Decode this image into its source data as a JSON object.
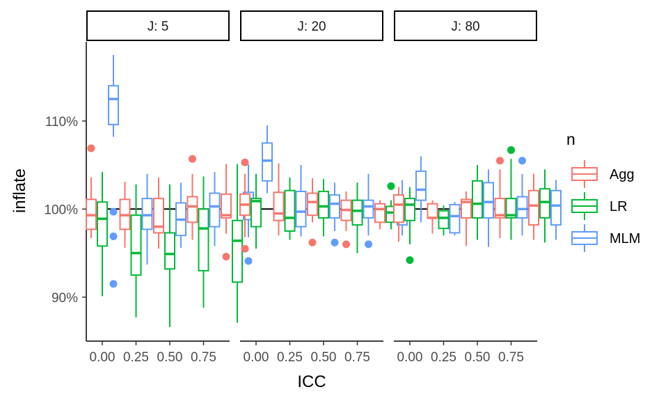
{
  "chart_data": {
    "type": "boxplot",
    "xlabel": "ICC",
    "ylabel": "inflate",
    "x_ticks": [
      "0.00",
      "0.25",
      "0.50",
      "0.75"
    ],
    "x_values": [
      0.0,
      0.25,
      0.5,
      0.75
    ],
    "y_ticks": [
      {
        "value": 0.9,
        "label": "90%"
      },
      {
        "value": 1.0,
        "label": "100%"
      },
      {
        "value": 1.1,
        "label": "110%"
      }
    ],
    "ylim": [
      0.85,
      1.19
    ],
    "reference_line": 1.0,
    "legend": {
      "title": "n",
      "position": "right",
      "items": [
        {
          "name": "Agg",
          "color": "#F8766D"
        },
        {
          "name": "LR",
          "color": "#00BA38"
        },
        {
          "name": "MLM",
          "color": "#619CFF"
        }
      ]
    },
    "facets": [
      {
        "label": "J: 5",
        "groups": [
          {
            "icc": 0.0,
            "boxes": [
              {
                "series": "Agg",
                "lo": 0.967,
                "q1": 0.977,
                "med": 0.993,
                "q3": 1.011,
                "hi": 1.036,
                "outliers": [
                  1.069
                ]
              },
              {
                "series": "LR",
                "lo": 0.901,
                "q1": 0.958,
                "med": 0.989,
                "q3": 1.008,
                "hi": 1.042,
                "outliers": []
              },
              {
                "series": "MLM",
                "lo": 1.082,
                "q1": 1.096,
                "med": 1.125,
                "q3": 1.14,
                "hi": 1.175,
                "outliers": [
                  0.997,
                  0.969,
                  0.915
                ]
              }
            ]
          },
          {
            "icc": 0.25,
            "boxes": [
              {
                "series": "Agg",
                "lo": 0.956,
                "q1": 0.977,
                "med": 0.993,
                "q3": 1.011,
                "hi": 1.031,
                "outliers": []
              },
              {
                "series": "LR",
                "lo": 0.877,
                "q1": 0.925,
                "med": 0.95,
                "q3": 0.993,
                "hi": 1.028,
                "outliers": []
              },
              {
                "series": "MLM",
                "lo": 0.937,
                "q1": 0.977,
                "med": 0.993,
                "q3": 1.012,
                "hi": 1.04,
                "outliers": []
              }
            ]
          },
          {
            "icc": 0.5,
            "boxes": [
              {
                "series": "Agg",
                "lo": 0.955,
                "q1": 0.973,
                "med": 0.98,
                "q3": 1.012,
                "hi": 1.036,
                "outliers": []
              },
              {
                "series": "LR",
                "lo": 0.866,
                "q1": 0.932,
                "med": 0.949,
                "q3": 0.973,
                "hi": 1.028,
                "outliers": []
              },
              {
                "series": "MLM",
                "lo": 0.956,
                "q1": 0.97,
                "med": 0.988,
                "q3": 1.007,
                "hi": 1.03,
                "outliers": []
              }
            ]
          },
          {
            "icc": 0.75,
            "boxes": [
              {
                "series": "Agg",
                "lo": 0.965,
                "q1": 0.985,
                "med": 1.003,
                "q3": 1.014,
                "hi": 1.04,
                "outliers": [
                  1.057
                ]
              },
              {
                "series": "LR",
                "lo": 0.888,
                "q1": 0.93,
                "med": 0.978,
                "q3": 1.0,
                "hi": 1.037,
                "outliers": []
              },
              {
                "series": "MLM",
                "lo": 0.958,
                "q1": 0.98,
                "med": 1.003,
                "q3": 1.018,
                "hi": 1.042,
                "outliers": []
              }
            ]
          },
          {
            "icc": 1.0,
            "boxes": [
              {
                "series": "Agg",
                "lo": 0.972,
                "q1": 0.99,
                "med": 0.993,
                "q3": 1.017,
                "hi": 1.051,
                "outliers": [
                  0.946
                ]
              },
              {
                "series": "LR",
                "lo": 0.871,
                "q1": 0.917,
                "med": 0.964,
                "q3": 0.987,
                "hi": 1.051,
                "outliers": []
              },
              {
                "series": "MLM",
                "lo": 0.968,
                "q1": 0.988,
                "med": 1.001,
                "q3": 1.019,
                "hi": 1.051,
                "outliers": [
                  0.941
                ]
              }
            ]
          }
        ]
      },
      {
        "label": "J: 20",
        "groups": [
          {
            "icc": 0.0,
            "boxes": [
              {
                "series": "Agg",
                "lo": 0.968,
                "q1": 0.993,
                "med": 1.005,
                "q3": 1.017,
                "hi": 1.04,
                "outliers": [
                  1.053,
                  0.955
                ]
              },
              {
                "series": "LR",
                "lo": 0.955,
                "q1": 0.98,
                "med": 1.009,
                "q3": 1.012,
                "hi": 1.04,
                "outliers": []
              },
              {
                "series": "MLM",
                "lo": 1.018,
                "q1": 1.032,
                "med": 1.055,
                "q3": 1.075,
                "hi": 1.095,
                "outliers": []
              }
            ]
          },
          {
            "icc": 0.25,
            "boxes": [
              {
                "series": "Agg",
                "lo": 0.97,
                "q1": 0.987,
                "med": 0.995,
                "q3": 1.019,
                "hi": 1.052,
                "outliers": []
              },
              {
                "series": "LR",
                "lo": 0.965,
                "q1": 0.975,
                "med": 0.99,
                "q3": 1.021,
                "hi": 1.036,
                "outliers": []
              },
              {
                "series": "MLM",
                "lo": 0.969,
                "q1": 0.98,
                "med": 0.997,
                "q3": 1.02,
                "hi": 1.05,
                "outliers": []
              }
            ]
          },
          {
            "icc": 0.5,
            "boxes": [
              {
                "series": "Agg",
                "lo": 0.985,
                "q1": 0.993,
                "med": 1.008,
                "q3": 1.018,
                "hi": 1.035,
                "outliers": [
                  0.962
                ]
              },
              {
                "series": "LR",
                "lo": 0.969,
                "q1": 0.99,
                "med": 1.003,
                "q3": 1.02,
                "hi": 1.034,
                "outliers": []
              },
              {
                "series": "MLM",
                "lo": 0.975,
                "q1": 0.99,
                "med": 1.006,
                "q3": 1.016,
                "hi": 1.03,
                "outliers": [
                  0.962
                ]
              }
            ]
          },
          {
            "icc": 0.75,
            "boxes": [
              {
                "series": "Agg",
                "lo": 0.975,
                "q1": 0.987,
                "med": 0.999,
                "q3": 1.01,
                "hi": 1.02,
                "outliers": [
                  0.96
                ]
              },
              {
                "series": "LR",
                "lo": 0.95,
                "q1": 0.982,
                "med": 0.998,
                "q3": 1.01,
                "hi": 1.03,
                "outliers": []
              },
              {
                "series": "MLM",
                "lo": 0.97,
                "q1": 0.99,
                "med": 1.003,
                "q3": 1.01,
                "hi": 1.04,
                "outliers": [
                  0.96
                ]
              }
            ]
          },
          {
            "icc": 1.0,
            "boxes": [
              {
                "series": "Agg",
                "lo": 0.977,
                "q1": 0.985,
                "med": 1.0,
                "q3": 1.006,
                "hi": 1.01,
                "outliers": []
              },
              {
                "series": "LR",
                "lo": 0.977,
                "q1": 0.985,
                "med": 0.996,
                "q3": 1.003,
                "hi": 1.01,
                "outliers": [
                  1.026
                ]
              },
              {
                "series": "MLM",
                "lo": 0.97,
                "q1": 0.982,
                "med": 0.999,
                "q3": 1.006,
                "hi": 1.033,
                "outliers": []
              }
            ]
          }
        ]
      },
      {
        "label": "J: 80",
        "groups": [
          {
            "icc": 0.0,
            "boxes": [
              {
                "series": "Agg",
                "lo": 0.963,
                "q1": 0.985,
                "med": 1.005,
                "q3": 1.016,
                "hi": 1.025,
                "outliers": []
              },
              {
                "series": "LR",
                "lo": 0.96,
                "q1": 0.987,
                "med": 1.005,
                "q3": 1.012,
                "hi": 1.025,
                "outliers": [
                  0.942
                ]
              },
              {
                "series": "MLM",
                "lo": 0.985,
                "q1": 1.01,
                "med": 1.022,
                "q3": 1.043,
                "hi": 1.06,
                "outliers": []
              }
            ]
          },
          {
            "icc": 0.25,
            "boxes": [
              {
                "series": "Agg",
                "lo": 0.972,
                "q1": 0.99,
                "med": 0.99,
                "q3": 1.006,
                "hi": 1.01,
                "outliers": []
              },
              {
                "series": "LR",
                "lo": 0.97,
                "q1": 0.978,
                "med": 0.99,
                "q3": 0.998,
                "hi": 1.004,
                "outliers": []
              },
              {
                "series": "MLM",
                "lo": 0.97,
                "q1": 0.973,
                "med": 0.992,
                "q3": 1.005,
                "hi": 1.008,
                "outliers": []
              }
            ]
          },
          {
            "icc": 0.5,
            "boxes": [
              {
                "series": "Agg",
                "lo": 0.958,
                "q1": 0.99,
                "med": 1.008,
                "q3": 1.011,
                "hi": 1.02,
                "outliers": []
              },
              {
                "series": "LR",
                "lo": 0.965,
                "q1": 0.99,
                "med": 1.006,
                "q3": 1.032,
                "hi": 1.05,
                "outliers": []
              },
              {
                "series": "MLM",
                "lo": 0.957,
                "q1": 0.99,
                "med": 1.008,
                "q3": 1.03,
                "hi": 1.045,
                "outliers": []
              }
            ]
          },
          {
            "icc": 0.75,
            "boxes": [
              {
                "series": "Agg",
                "lo": 0.967,
                "q1": 0.99,
                "med": 0.993,
                "q3": 1.012,
                "hi": 1.045,
                "outliers": [
                  1.055
                ]
              },
              {
                "series": "LR",
                "lo": 0.965,
                "q1": 0.99,
                "med": 0.993,
                "q3": 1.012,
                "hi": 1.057,
                "outliers": [
                  1.067
                ]
              },
              {
                "series": "MLM",
                "lo": 0.97,
                "q1": 0.99,
                "med": 1.0,
                "q3": 1.014,
                "hi": 1.04,
                "outliers": [
                  1.055
                ]
              }
            ]
          },
          {
            "icc": 1.0,
            "boxes": [
              {
                "series": "Agg",
                "lo": 0.965,
                "q1": 0.982,
                "med": 1.004,
                "q3": 1.021,
                "hi": 1.04,
                "outliers": []
              },
              {
                "series": "LR",
                "lo": 0.962,
                "q1": 0.99,
                "med": 1.008,
                "q3": 1.023,
                "hi": 1.045,
                "outliers": []
              },
              {
                "series": "MLM",
                "lo": 0.965,
                "q1": 0.982,
                "med": 1.004,
                "q3": 1.021,
                "hi": 1.033,
                "outliers": []
              }
            ]
          }
        ]
      }
    ]
  }
}
